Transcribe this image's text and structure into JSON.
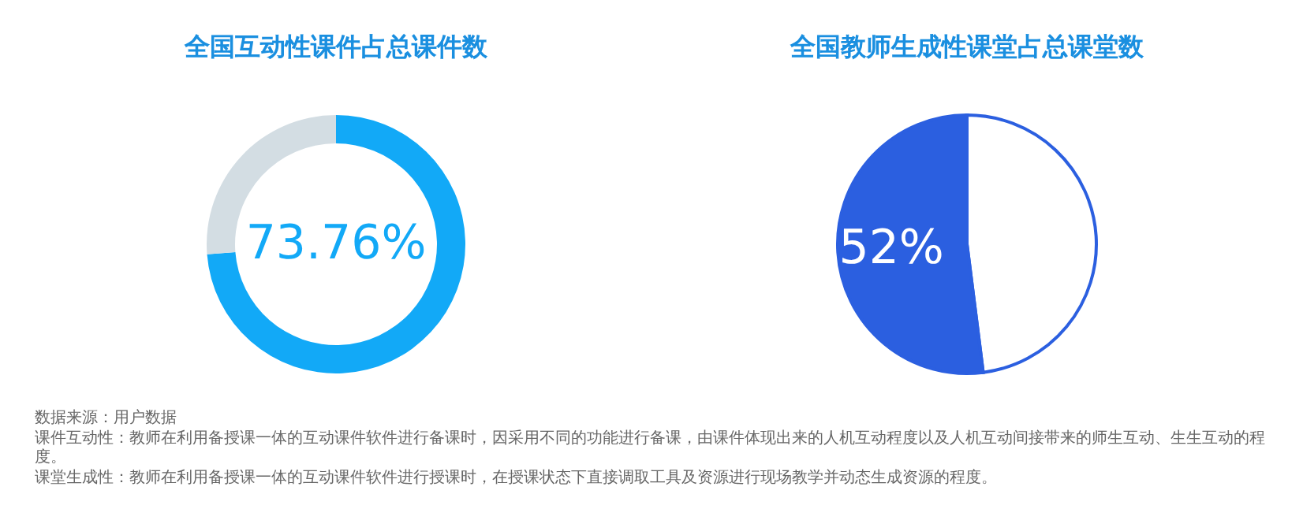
{
  "chart_data": [
    {
      "type": "donut",
      "title": "全国互动性课件占总课件数",
      "categories": [
        null,
        null
      ],
      "values": [
        73.76,
        26.24
      ],
      "colors": [
        "#12a9f7",
        "#d3dde3"
      ],
      "value_labels": [
        "73.76%",
        null
      ],
      "legend": false,
      "annotations": [
        "数据来源：用户数据",
        "课件互动性：教师在利用备授课一体的互动课件软件进行备课时，因采用不同的功能进行备课，由课件体现出来的人机互动程度以及人机互动间接带来的师生互动、生生互动的程度。",
        "课堂生成性：教师在利用备授课一体的互动课件软件进行授课时，在授课状态下直接调取工具及资源进行现场教学并动态生成资源的程度。"
      ]
    },
    {
      "type": "pie",
      "title": "全国教师生成性课堂占总课堂数",
      "categories": [
        null,
        null
      ],
      "values": [
        48,
        52
      ],
      "colors": [
        "#ffffff",
        "#2b5fe0"
      ],
      "value_labels": [
        null,
        "52%"
      ],
      "legend": false
    }
  ]
}
